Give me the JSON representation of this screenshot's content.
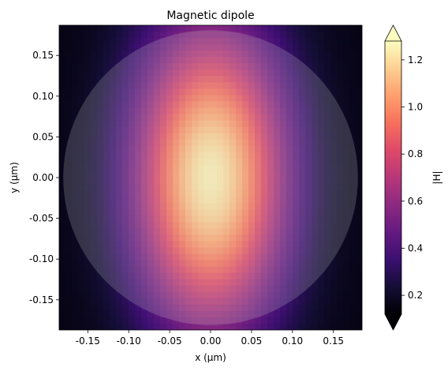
{
  "chart_data": {
    "type": "heatmap",
    "title": "Magnetic dipole",
    "xlabel": "x (µm)",
    "ylabel": "y (µm)",
    "xlim": [
      -0.185,
      0.185
    ],
    "ylim": [
      -0.187,
      0.187
    ],
    "x_ticks": [
      -0.15,
      -0.1,
      -0.05,
      0.0,
      0.05,
      0.1,
      0.15
    ],
    "x_tick_labels": [
      "-0.15",
      "-0.10",
      "-0.05",
      "0.00",
      "0.05",
      "0.10",
      "0.15"
    ],
    "y_ticks": [
      0.15,
      0.1,
      0.05,
      0.0,
      -0.05,
      -0.1,
      -0.15
    ],
    "y_tick_labels": [
      "0.15",
      "0.10",
      "0.05",
      "0.00",
      "-0.05",
      "-0.10",
      "-0.15"
    ],
    "colorbar": {
      "label": "|H|",
      "min": 0.12,
      "max": 1.28,
      "extend": "both",
      "colormap": "magma",
      "ticks": [
        0.2,
        0.4,
        0.6,
        0.8,
        1.0,
        1.2
      ],
      "tick_labels": [
        "0.2",
        "0.4",
        "0.6",
        "0.8",
        "1.0",
        "1.2"
      ]
    },
    "field": {
      "description": "|H| peaks near 1.25 at center, elongated vertically, falls to ~0.15 at corners",
      "peak": 1.25,
      "center": [
        0.0,
        0.0
      ],
      "grid_n": 48
    },
    "overlay": {
      "shape": "circle",
      "center": [
        0.0,
        0.0
      ],
      "radius": 0.18,
      "fill": "#c8c8c8",
      "opacity": 0.22
    },
    "grid": false
  }
}
